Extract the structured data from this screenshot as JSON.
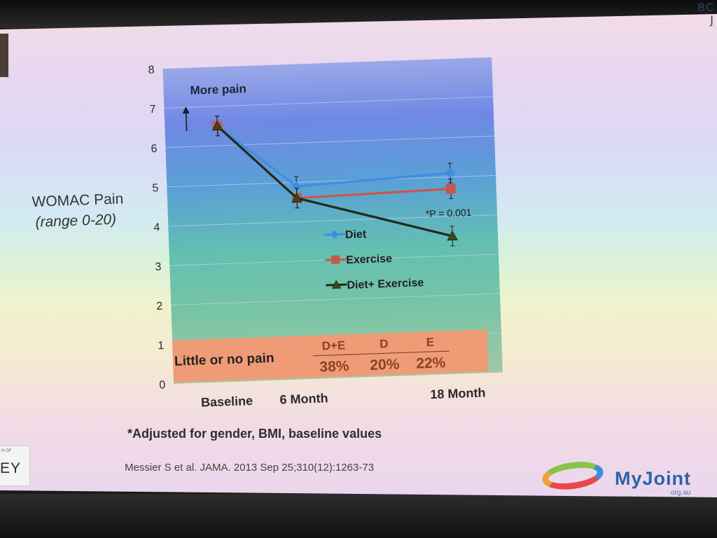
{
  "slide": {
    "corner_text": "BC J",
    "y_axis_title_line1": "WOMAC Pain",
    "y_axis_title_line2": "(range 0-20)",
    "footnote": "*Adjusted for gender, BMI, baseline values",
    "citation": "Messier S et al. JAMA. 2013 Sep 25;310(12):1263-73",
    "left_logo_small": "N OF",
    "left_logo_text": "EY",
    "brand": {
      "name": "MyJoint",
      "subtext": "org.au"
    }
  },
  "chart_data": {
    "type": "line",
    "x_labels": [
      "Baseline",
      "6 Month",
      "18 Month"
    ],
    "x_months": [
      0,
      6,
      18
    ],
    "y_ticks": [
      0,
      1,
      2,
      3,
      4,
      5,
      6,
      7,
      8
    ],
    "ylim": [
      0,
      8
    ],
    "more_pain_label": "More pain",
    "series": [
      {
        "name": "Diet",
        "values": [
          6.5,
          4.9,
          5.1
        ],
        "color": "#3d8ee0",
        "marker": "diamond"
      },
      {
        "name": "Exercise",
        "values": [
          6.5,
          4.6,
          4.7
        ],
        "color": "#c9574c",
        "marker": "square"
      },
      {
        "name": "Diet+ Exercise",
        "values": [
          6.5,
          4.6,
          3.5
        ],
        "color": "#1d2b1d",
        "marker": "triangle"
      }
    ],
    "annotation": "*P = 0.001",
    "little_pain": {
      "label": "Little or no pain",
      "groups": [
        {
          "name": "D+E",
          "value": "38%"
        },
        {
          "name": "D",
          "value": "20%"
        },
        {
          "name": "E",
          "value": "22%"
        }
      ]
    },
    "colors": {
      "diet": "#3d8ee0",
      "exercise": "#c9574c",
      "diet_exercise": "#1d2b1d",
      "box_fill": "#ef9c76",
      "box_text": "#8a4128"
    }
  }
}
